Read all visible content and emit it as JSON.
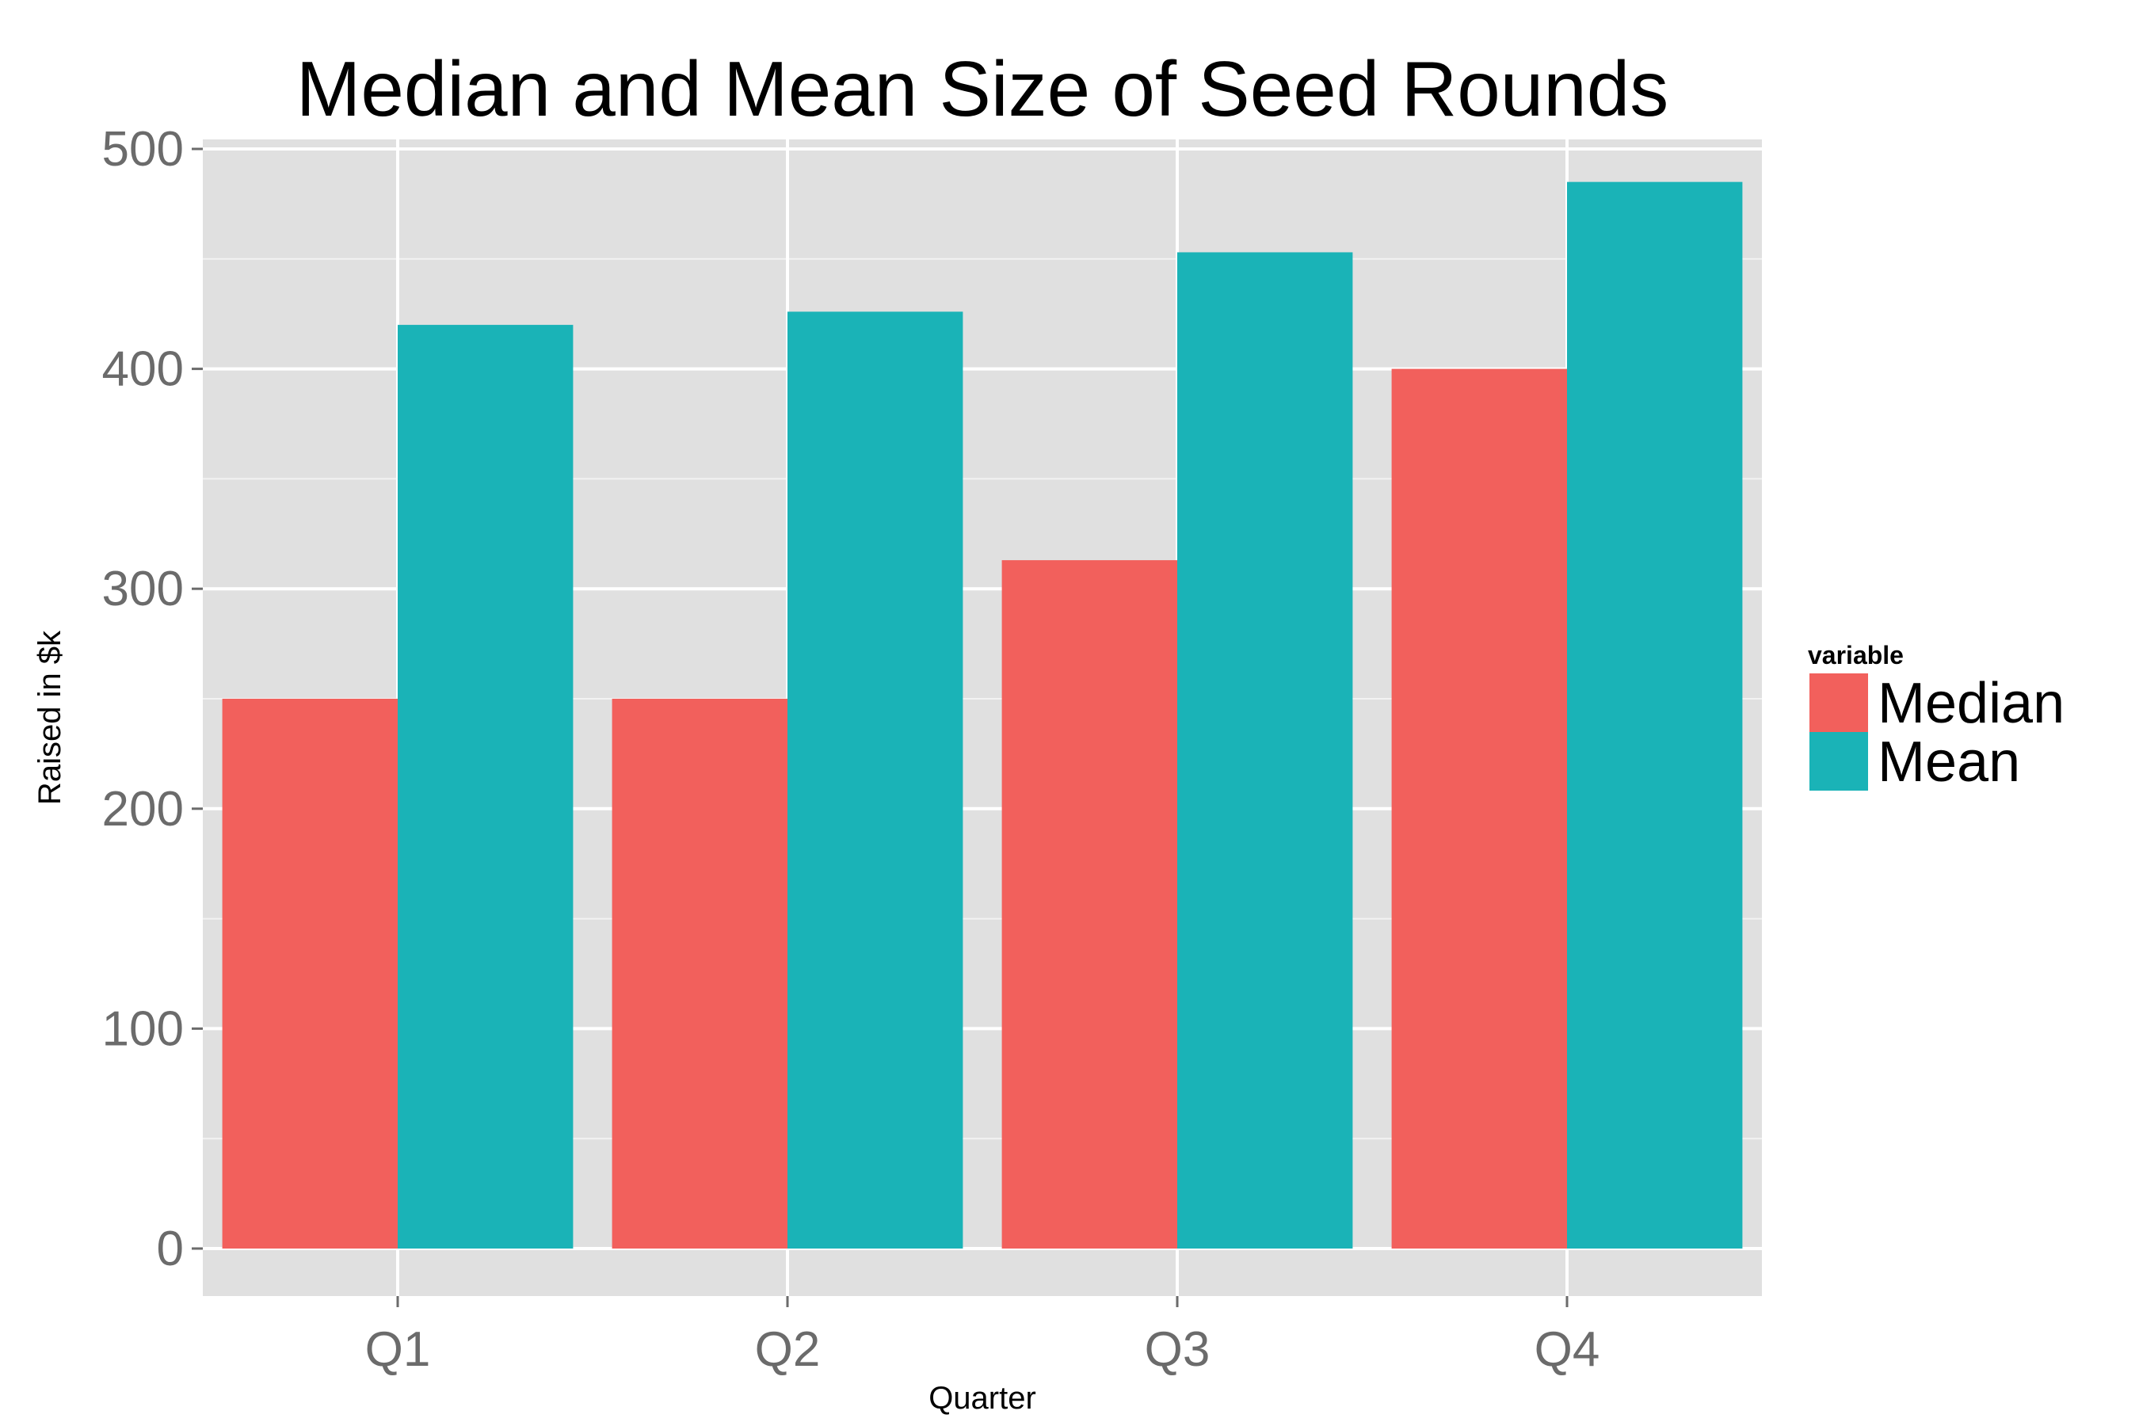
{
  "chart_data": {
    "type": "bar",
    "title": "Median and Mean Size of Seed Rounds",
    "xlabel": "Quarter",
    "ylabel": "Raised in $k",
    "categories": [
      "Q1",
      "Q2",
      "Q3",
      "Q4"
    ],
    "series": [
      {
        "name": "Median",
        "color": "#F2605C",
        "values": [
          250,
          250,
          313,
          400
        ]
      },
      {
        "name": "Mean",
        "color": "#1AB3B7",
        "values": [
          420,
          426,
          453,
          485
        ]
      }
    ],
    "ylim": [
      -24,
      500
    ],
    "yticks": [
      0,
      100,
      200,
      300,
      400,
      500
    ],
    "ytick_labels": [
      "0",
      "100",
      "200",
      "300",
      "400",
      "500"
    ],
    "grid": true,
    "legend": {
      "title": "variable",
      "position": "right"
    },
    "panel_background": "#E0E0E0"
  }
}
